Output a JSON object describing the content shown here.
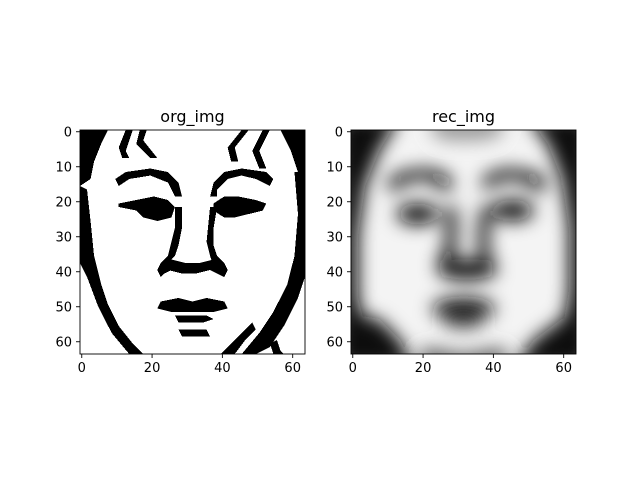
{
  "colors": {
    "ink": "#000000",
    "paper": "#ffffff",
    "frame": "#000000"
  },
  "chart_data": [
    {
      "type": "image",
      "title": "org_img",
      "shape": [
        64,
        64
      ],
      "xlim": [
        0,
        63
      ],
      "ylim": [
        63,
        0
      ],
      "xticks": [
        0,
        20,
        40,
        60
      ],
      "yticks": [
        0,
        10,
        20,
        30,
        40,
        50,
        60
      ],
      "xtick_labels": [
        "0",
        "20",
        "40",
        "60"
      ],
      "ytick_labels": [
        "0",
        "10",
        "20",
        "30",
        "40",
        "50",
        "60"
      ],
      "colormap": "gray",
      "content": "binary line-art face (original image)"
    },
    {
      "type": "image",
      "title": "rec_img",
      "shape": [
        64,
        64
      ],
      "xlim": [
        0,
        63
      ],
      "ylim": [
        63,
        0
      ],
      "xticks": [
        0,
        20,
        40,
        60
      ],
      "yticks": [
        0,
        10,
        20,
        30,
        40,
        50,
        60
      ],
      "xtick_labels": [
        "0",
        "20",
        "40",
        "60"
      ],
      "ytick_labels": [
        "0",
        "10",
        "20",
        "30",
        "40",
        "50",
        "60"
      ],
      "colormap": "gray",
      "content": "blurred grayscale reconstruction of the face"
    }
  ]
}
